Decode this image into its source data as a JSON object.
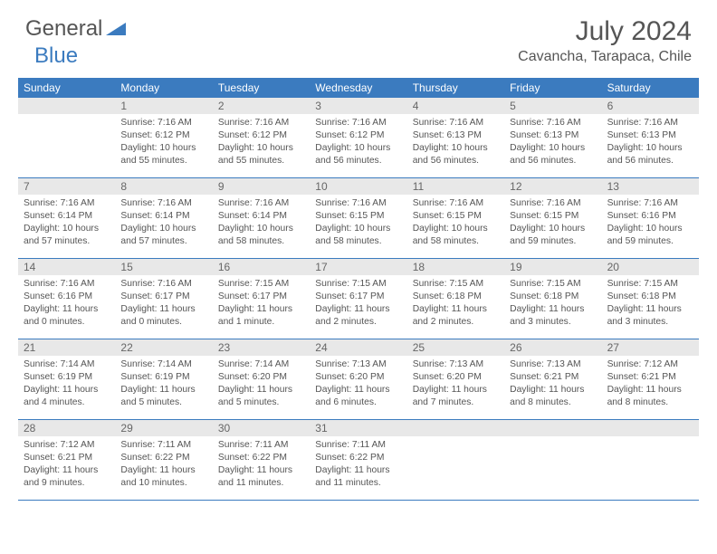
{
  "brand": {
    "part1": "General",
    "part2": "Blue"
  },
  "title": "July 2024",
  "location": "Cavancha, Tarapaca, Chile",
  "colors": {
    "accent": "#3b7bbf",
    "header_bg": "#e8e8e8",
    "text": "#555555",
    "bg": "#ffffff"
  },
  "dow": [
    "Sunday",
    "Monday",
    "Tuesday",
    "Wednesday",
    "Thursday",
    "Friday",
    "Saturday"
  ],
  "weeks": [
    [
      {
        "n": "",
        "sr": "",
        "ss": "",
        "dl": ""
      },
      {
        "n": "1",
        "sr": "Sunrise: 7:16 AM",
        "ss": "Sunset: 6:12 PM",
        "dl": "Daylight: 10 hours and 55 minutes."
      },
      {
        "n": "2",
        "sr": "Sunrise: 7:16 AM",
        "ss": "Sunset: 6:12 PM",
        "dl": "Daylight: 10 hours and 55 minutes."
      },
      {
        "n": "3",
        "sr": "Sunrise: 7:16 AM",
        "ss": "Sunset: 6:12 PM",
        "dl": "Daylight: 10 hours and 56 minutes."
      },
      {
        "n": "4",
        "sr": "Sunrise: 7:16 AM",
        "ss": "Sunset: 6:13 PM",
        "dl": "Daylight: 10 hours and 56 minutes."
      },
      {
        "n": "5",
        "sr": "Sunrise: 7:16 AM",
        "ss": "Sunset: 6:13 PM",
        "dl": "Daylight: 10 hours and 56 minutes."
      },
      {
        "n": "6",
        "sr": "Sunrise: 7:16 AM",
        "ss": "Sunset: 6:13 PM",
        "dl": "Daylight: 10 hours and 56 minutes."
      }
    ],
    [
      {
        "n": "7",
        "sr": "Sunrise: 7:16 AM",
        "ss": "Sunset: 6:14 PM",
        "dl": "Daylight: 10 hours and 57 minutes."
      },
      {
        "n": "8",
        "sr": "Sunrise: 7:16 AM",
        "ss": "Sunset: 6:14 PM",
        "dl": "Daylight: 10 hours and 57 minutes."
      },
      {
        "n": "9",
        "sr": "Sunrise: 7:16 AM",
        "ss": "Sunset: 6:14 PM",
        "dl": "Daylight: 10 hours and 58 minutes."
      },
      {
        "n": "10",
        "sr": "Sunrise: 7:16 AM",
        "ss": "Sunset: 6:15 PM",
        "dl": "Daylight: 10 hours and 58 minutes."
      },
      {
        "n": "11",
        "sr": "Sunrise: 7:16 AM",
        "ss": "Sunset: 6:15 PM",
        "dl": "Daylight: 10 hours and 58 minutes."
      },
      {
        "n": "12",
        "sr": "Sunrise: 7:16 AM",
        "ss": "Sunset: 6:15 PM",
        "dl": "Daylight: 10 hours and 59 minutes."
      },
      {
        "n": "13",
        "sr": "Sunrise: 7:16 AM",
        "ss": "Sunset: 6:16 PM",
        "dl": "Daylight: 10 hours and 59 minutes."
      }
    ],
    [
      {
        "n": "14",
        "sr": "Sunrise: 7:16 AM",
        "ss": "Sunset: 6:16 PM",
        "dl": "Daylight: 11 hours and 0 minutes."
      },
      {
        "n": "15",
        "sr": "Sunrise: 7:16 AM",
        "ss": "Sunset: 6:17 PM",
        "dl": "Daylight: 11 hours and 0 minutes."
      },
      {
        "n": "16",
        "sr": "Sunrise: 7:15 AM",
        "ss": "Sunset: 6:17 PM",
        "dl": "Daylight: 11 hours and 1 minute."
      },
      {
        "n": "17",
        "sr": "Sunrise: 7:15 AM",
        "ss": "Sunset: 6:17 PM",
        "dl": "Daylight: 11 hours and 2 minutes."
      },
      {
        "n": "18",
        "sr": "Sunrise: 7:15 AM",
        "ss": "Sunset: 6:18 PM",
        "dl": "Daylight: 11 hours and 2 minutes."
      },
      {
        "n": "19",
        "sr": "Sunrise: 7:15 AM",
        "ss": "Sunset: 6:18 PM",
        "dl": "Daylight: 11 hours and 3 minutes."
      },
      {
        "n": "20",
        "sr": "Sunrise: 7:15 AM",
        "ss": "Sunset: 6:18 PM",
        "dl": "Daylight: 11 hours and 3 minutes."
      }
    ],
    [
      {
        "n": "21",
        "sr": "Sunrise: 7:14 AM",
        "ss": "Sunset: 6:19 PM",
        "dl": "Daylight: 11 hours and 4 minutes."
      },
      {
        "n": "22",
        "sr": "Sunrise: 7:14 AM",
        "ss": "Sunset: 6:19 PM",
        "dl": "Daylight: 11 hours and 5 minutes."
      },
      {
        "n": "23",
        "sr": "Sunrise: 7:14 AM",
        "ss": "Sunset: 6:20 PM",
        "dl": "Daylight: 11 hours and 5 minutes."
      },
      {
        "n": "24",
        "sr": "Sunrise: 7:13 AM",
        "ss": "Sunset: 6:20 PM",
        "dl": "Daylight: 11 hours and 6 minutes."
      },
      {
        "n": "25",
        "sr": "Sunrise: 7:13 AM",
        "ss": "Sunset: 6:20 PM",
        "dl": "Daylight: 11 hours and 7 minutes."
      },
      {
        "n": "26",
        "sr": "Sunrise: 7:13 AM",
        "ss": "Sunset: 6:21 PM",
        "dl": "Daylight: 11 hours and 8 minutes."
      },
      {
        "n": "27",
        "sr": "Sunrise: 7:12 AM",
        "ss": "Sunset: 6:21 PM",
        "dl": "Daylight: 11 hours and 8 minutes."
      }
    ],
    [
      {
        "n": "28",
        "sr": "Sunrise: 7:12 AM",
        "ss": "Sunset: 6:21 PM",
        "dl": "Daylight: 11 hours and 9 minutes."
      },
      {
        "n": "29",
        "sr": "Sunrise: 7:11 AM",
        "ss": "Sunset: 6:22 PM",
        "dl": "Daylight: 11 hours and 10 minutes."
      },
      {
        "n": "30",
        "sr": "Sunrise: 7:11 AM",
        "ss": "Sunset: 6:22 PM",
        "dl": "Daylight: 11 hours and 11 minutes."
      },
      {
        "n": "31",
        "sr": "Sunrise: 7:11 AM",
        "ss": "Sunset: 6:22 PM",
        "dl": "Daylight: 11 hours and 11 minutes."
      },
      {
        "n": "",
        "sr": "",
        "ss": "",
        "dl": ""
      },
      {
        "n": "",
        "sr": "",
        "ss": "",
        "dl": ""
      },
      {
        "n": "",
        "sr": "",
        "ss": "",
        "dl": ""
      }
    ]
  ]
}
